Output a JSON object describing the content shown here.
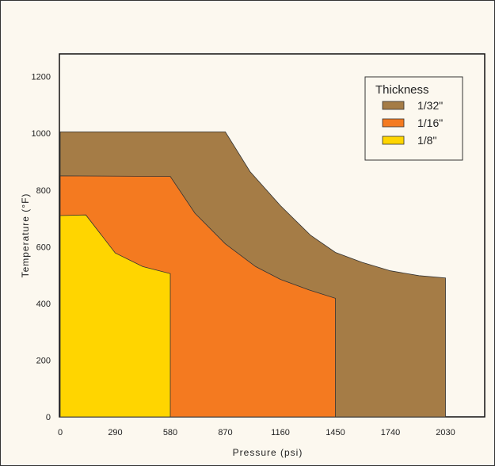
{
  "chart_data": {
    "type": "area",
    "xlabel": "Pressure (psi)",
    "ylabel": "Temperature (°F)",
    "xlim": [
      0,
      2210
    ],
    "ylim": [
      0,
      1280
    ],
    "x_ticks": [
      "0",
      "290",
      "580",
      "870",
      "1160",
      "1450",
      "1740",
      "2030"
    ],
    "y_ticks": [
      "0",
      "200",
      "400",
      "600",
      "800",
      "1000",
      "1200"
    ],
    "legend": {
      "title": "Thickness",
      "position": "top-right"
    },
    "grid": false,
    "series": [
      {
        "name": "1/32\"",
        "color": "#a57c46",
        "points": [
          [
            0,
            0
          ],
          [
            0,
            1005
          ],
          [
            870,
            1005
          ],
          [
            1000,
            865
          ],
          [
            1160,
            745
          ],
          [
            1320,
            640
          ],
          [
            1450,
            580
          ],
          [
            1590,
            545
          ],
          [
            1740,
            515
          ],
          [
            1890,
            498
          ],
          [
            2030,
            490
          ],
          [
            2030,
            0
          ]
        ]
      },
      {
        "name": "1/16\"",
        "color": "#f47a20",
        "points": [
          [
            0,
            0
          ],
          [
            0,
            850
          ],
          [
            580,
            848
          ],
          [
            710,
            718
          ],
          [
            870,
            610
          ],
          [
            1030,
            530
          ],
          [
            1160,
            485
          ],
          [
            1310,
            448
          ],
          [
            1450,
            418
          ],
          [
            1450,
            0
          ]
        ]
      },
      {
        "name": "1/8\"",
        "color": "#ffd500",
        "points": [
          [
            0,
            0
          ],
          [
            0,
            710
          ],
          [
            135,
            712
          ],
          [
            290,
            578
          ],
          [
            435,
            530
          ],
          [
            580,
            505
          ],
          [
            580,
            0
          ]
        ]
      }
    ]
  }
}
